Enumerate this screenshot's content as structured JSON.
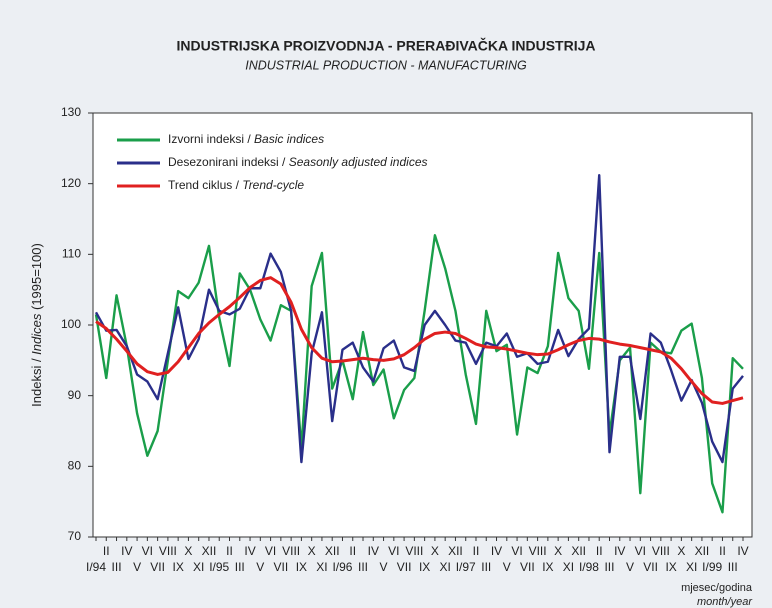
{
  "chart_data": {
    "type": "line",
    "title": "INDUSTRIJSKA PROIZVODNJA - PRERAĐIVAČKA INDUSTRIJA",
    "subtitle": "INDUSTRIAL PRODUCTION - MANUFACTURING",
    "ylabel_parts": [
      "Indeksi / ",
      "Indices",
      " (1995=100)"
    ],
    "xlabel": "mjesec/godina",
    "xlabel_en": "month/year",
    "categories": [
      "I/94",
      "II",
      "III",
      "IV",
      "V",
      "VI",
      "VII",
      "VIII",
      "IX",
      "X",
      "XI",
      "XII",
      "I/95",
      "II",
      "III",
      "IV",
      "V",
      "VI",
      "VII",
      "VIII",
      "IX",
      "X",
      "XI",
      "XII",
      "I/96",
      "II",
      "III",
      "IV",
      "V",
      "VI",
      "VII",
      "VIII",
      "IX",
      "X",
      "XI",
      "XII",
      "I/97",
      "II",
      "III",
      "IV",
      "V",
      "VI",
      "VII",
      "VIII",
      "IX",
      "X",
      "XI",
      "XII",
      "I/98",
      "II",
      "III",
      "IV",
      "V",
      "VI",
      "VII",
      "VIII",
      "IX",
      "X",
      "XI",
      "XII",
      "I/99",
      "II",
      "III",
      "IV"
    ],
    "ylim": [
      70,
      130
    ],
    "yticks": [
      70,
      80,
      90,
      100,
      110,
      120,
      130
    ],
    "grid": false,
    "legend": "upper left",
    "series": [
      {
        "name": "Izvorni indeksi / Basic indices",
        "color": "#1a9e4a",
        "values": [
          101.5,
          92.5,
          104.2,
          97,
          87.5,
          81.5,
          85,
          95,
          104.8,
          103.8,
          106,
          111.2,
          101,
          94.2,
          107.3,
          105,
          100.8,
          97.8,
          102.8,
          102,
          82.5,
          105.5,
          110.2,
          91,
          95,
          89.5,
          99,
          91.5,
          93.7,
          86.8,
          90.8,
          92.5,
          102,
          112.7,
          108,
          102,
          93,
          86,
          102,
          96.3,
          97.2,
          84.5,
          94,
          93.2,
          97,
          110.2,
          103.8,
          102,
          93.8,
          110.2,
          84.5,
          95,
          96.8,
          76.2,
          97.5,
          96.2,
          96,
          99.2,
          100.2,
          92.5,
          77.6,
          73.5,
          95.3,
          93.8
        ]
      },
      {
        "name": "Desezonirani indeksi / Seasonly adjusted indices",
        "color": "#2a2f8a",
        "values": [
          101.8,
          99.2,
          99.3,
          97,
          93,
          92,
          89.5,
          96,
          102.5,
          95.2,
          98,
          105,
          102,
          101.5,
          102.3,
          105.2,
          105.2,
          110.1,
          107.5,
          102,
          80.6,
          96,
          101.8,
          86.4,
          96.5,
          97.5,
          94,
          92,
          96.7,
          97.8,
          94,
          93.5,
          100,
          102,
          100,
          97.8,
          97.5,
          94.5,
          97.5,
          97,
          98.8,
          95.5,
          96,
          94.5,
          94.8,
          99.3,
          95.6,
          98,
          99.5,
          121.2,
          82,
          95.5,
          95.5,
          86.7,
          98.8,
          97.5,
          93.6,
          89.3,
          92.2,
          89,
          83.5,
          80.6,
          91,
          92.8
        ]
      },
      {
        "name": "Trend ciklus / Trend-cycle",
        "color": "#e02020",
        "values": [
          100.5,
          99.5,
          98,
          96.3,
          94.5,
          93.4,
          93,
          93.3,
          94.8,
          96.8,
          98.8,
          100.3,
          101.5,
          102.6,
          103.9,
          105.3,
          106.3,
          106.7,
          105.8,
          103.2,
          99.4,
          96.8,
          95.3,
          94.8,
          94.9,
          95.1,
          95.3,
          95.1,
          95,
          95.2,
          95.8,
          96.8,
          98,
          98.8,
          99,
          98.8,
          98.1,
          97.3,
          96.9,
          96.8,
          96.6,
          96.3,
          96,
          95.8,
          95.9,
          96.5,
          97.2,
          97.8,
          98.1,
          98,
          97.6,
          97.3,
          97.1,
          96.8,
          96.5,
          96.2,
          95.3,
          93.8,
          92,
          90.3,
          89.1,
          88.9,
          89.3,
          89.7
        ]
      }
    ]
  }
}
